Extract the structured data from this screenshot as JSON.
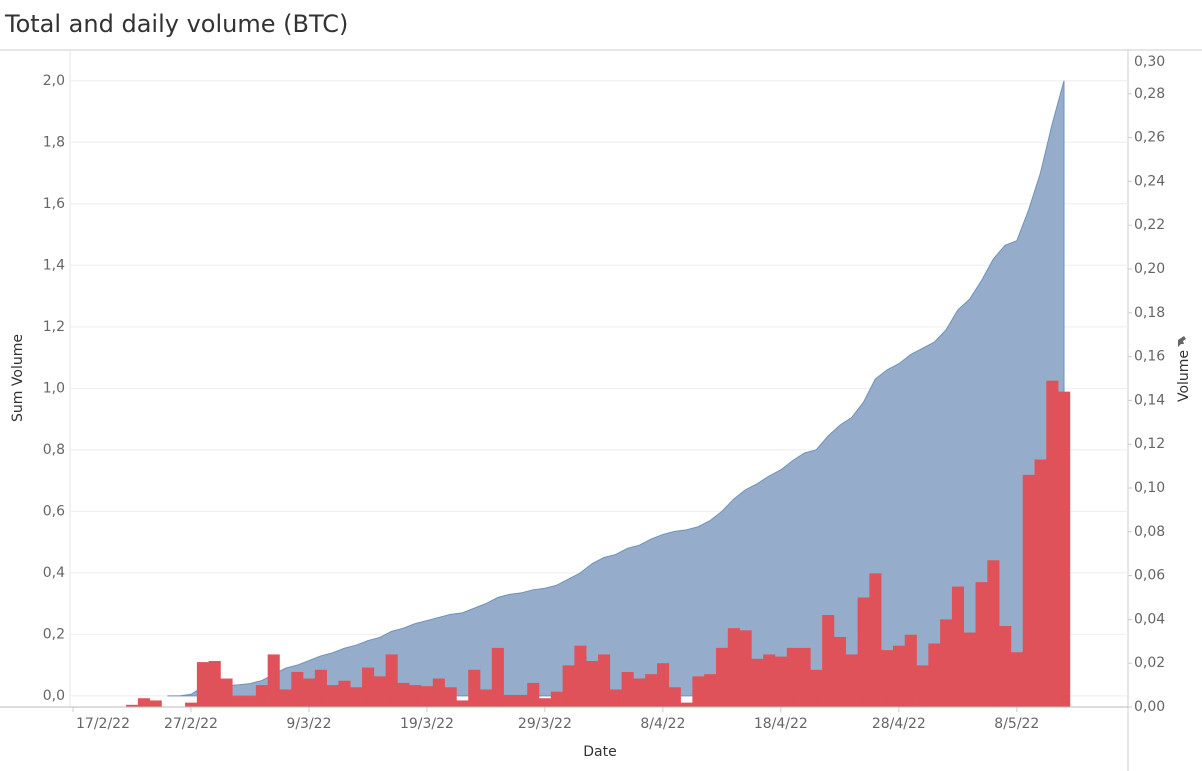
{
  "chart_data": {
    "type": "area-bar",
    "title": "Total and daily volume (BTC)",
    "x_label": "Date",
    "y_label": "Sum Volume",
    "y2_label": "Volume",
    "x": [
      "2022-02-22",
      "2022-02-23",
      "2022-02-24",
      "2022-02-25",
      "2022-02-26",
      "2022-02-27",
      "2022-02-28",
      "2022-03-01",
      "2022-03-02",
      "2022-03-03",
      "2022-03-04",
      "2022-03-05",
      "2022-03-06",
      "2022-03-07",
      "2022-03-08",
      "2022-03-09",
      "2022-03-10",
      "2022-03-11",
      "2022-03-12",
      "2022-03-13",
      "2022-03-14",
      "2022-03-15",
      "2022-03-16",
      "2022-03-17",
      "2022-03-18",
      "2022-03-19",
      "2022-03-20",
      "2022-03-21",
      "2022-03-22",
      "2022-03-23",
      "2022-03-24",
      "2022-03-25",
      "2022-03-26",
      "2022-03-27",
      "2022-03-28",
      "2022-03-29",
      "2022-03-30",
      "2022-03-31",
      "2022-04-01",
      "2022-04-02",
      "2022-04-03",
      "2022-04-04",
      "2022-04-05",
      "2022-04-06",
      "2022-04-07",
      "2022-04-08",
      "2022-04-09",
      "2022-04-10",
      "2022-04-11",
      "2022-04-12",
      "2022-04-13",
      "2022-04-14",
      "2022-04-15",
      "2022-04-16",
      "2022-04-17",
      "2022-04-18",
      "2022-04-19",
      "2022-04-20",
      "2022-04-21",
      "2022-04-22",
      "2022-04-23",
      "2022-04-24",
      "2022-04-25",
      "2022-04-26",
      "2022-04-27",
      "2022-04-28",
      "2022-04-29",
      "2022-04-30",
      "2022-05-01",
      "2022-05-02",
      "2022-05-03",
      "2022-05-04",
      "2022-05-05",
      "2022-05-06",
      "2022-05-07",
      "2022-05-08",
      "2022-05-09",
      "2022-05-10",
      "2022-05-11",
      "2022-05-12"
    ],
    "series": [
      {
        "type": "area",
        "axis": "y",
        "color": "#93acc9",
        "values": [
          null,
          null,
          null,
          0.0,
          0.0,
          0.005,
          0.03,
          0.032,
          0.034,
          0.036,
          0.04,
          0.05,
          0.07,
          0.09,
          0.1,
          0.115,
          0.13,
          0.14,
          0.155,
          0.165,
          0.18,
          0.19,
          0.21,
          0.22,
          0.235,
          0.245,
          0.255,
          0.265,
          0.27,
          0.285,
          0.3,
          0.32,
          0.33,
          0.335,
          0.345,
          0.35,
          0.36,
          0.38,
          0.4,
          0.43,
          0.45,
          0.46,
          0.48,
          0.49,
          0.51,
          0.525,
          0.535,
          0.54,
          0.55,
          0.57,
          0.6,
          0.64,
          0.67,
          0.69,
          0.715,
          0.735,
          0.765,
          0.79,
          0.8,
          0.845,
          0.88,
          0.905,
          0.955,
          1.03,
          1.06,
          1.08,
          1.11,
          1.13,
          1.15,
          1.19,
          1.255,
          1.29,
          1.35,
          1.42,
          1.465,
          1.48,
          1.58,
          1.7,
          1.86,
          2.0
        ]
      },
      {
        "type": "bar",
        "axis": "y2",
        "color": "#e0525a",
        "values": [
          0.001,
          0.004,
          0.003,
          0,
          0,
          0.002,
          0.0205,
          0.021,
          0.013,
          0.005,
          0.005,
          0.01,
          0.024,
          0.008,
          0.016,
          0.013,
          0.017,
          0.01,
          0.012,
          0.009,
          0.018,
          0.014,
          0.024,
          0.011,
          0.01,
          0.0095,
          0.013,
          0.009,
          0.003,
          0.017,
          0.008,
          0.027,
          0.0055,
          0.0055,
          0.011,
          0.004,
          0.007,
          0.019,
          0.028,
          0.021,
          0.024,
          0.008,
          0.016,
          0.013,
          0.015,
          0.02,
          0.009,
          0.002,
          0.014,
          0.015,
          0.027,
          0.036,
          0.035,
          0.022,
          0.024,
          0.023,
          0.027,
          0.027,
          0.017,
          0.042,
          0.032,
          0.024,
          0.05,
          0.061,
          0.026,
          0.028,
          0.033,
          0.019,
          0.029,
          0.04,
          0.055,
          0.034,
          0.057,
          0.067,
          0.037,
          0.025,
          0.106,
          0.113,
          0.149,
          0.144
        ]
      }
    ],
    "xlim": [
      "2022-02-17",
      "2022-05-17"
    ],
    "xticks": [
      {
        "value": "2022-02-17",
        "label": "17/2/22"
      },
      {
        "value": "2022-02-27",
        "label": "27/2/22"
      },
      {
        "value": "2022-03-09",
        "label": "9/3/22"
      },
      {
        "value": "2022-03-19",
        "label": "19/3/22"
      },
      {
        "value": "2022-03-29",
        "label": "29/3/22"
      },
      {
        "value": "2022-04-08",
        "label": "8/4/22"
      },
      {
        "value": "2022-04-18",
        "label": "18/4/22"
      },
      {
        "value": "2022-04-28",
        "label": "28/4/22"
      },
      {
        "value": "2022-05-08",
        "label": "8/5/22"
      }
    ],
    "ylim": [
      -0.036,
      2.1
    ],
    "yticks": [
      {
        "value": 0,
        "label": "0,0"
      },
      {
        "value": 0.2,
        "label": "0,2"
      },
      {
        "value": 0.4,
        "label": "0,4"
      },
      {
        "value": 0.6,
        "label": "0,6"
      },
      {
        "value": 0.8,
        "label": "0,8"
      },
      {
        "value": 1.0,
        "label": "1,0"
      },
      {
        "value": 1.2,
        "label": "1,2"
      },
      {
        "value": 1.4,
        "label": "1,4"
      },
      {
        "value": 1.6,
        "label": "1,6"
      },
      {
        "value": 1.8,
        "label": "1,8"
      },
      {
        "value": 2.0,
        "label": "2,0"
      }
    ],
    "y2lim": [
      0,
      0.3
    ],
    "y2ticks": [
      {
        "value": 0,
        "label": "0,00"
      },
      {
        "value": 0.02,
        "label": "0,02"
      },
      {
        "value": 0.04,
        "label": "0,04"
      },
      {
        "value": 0.06,
        "label": "0,06"
      },
      {
        "value": 0.08,
        "label": "0,08"
      },
      {
        "value": 0.1,
        "label": "0,10"
      },
      {
        "value": 0.12,
        "label": "0,12"
      },
      {
        "value": 0.14,
        "label": "0,14"
      },
      {
        "value": 0.16,
        "label": "0,16"
      },
      {
        "value": 0.18,
        "label": "0,18"
      },
      {
        "value": 0.2,
        "label": "0,20"
      },
      {
        "value": 0.22,
        "label": "0,22"
      },
      {
        "value": 0.24,
        "label": "0,24"
      },
      {
        "value": 0.26,
        "label": "0,26"
      },
      {
        "value": 0.28,
        "label": "0,28"
      },
      {
        "value": 0.3,
        "label": "0,30"
      }
    ],
    "grid": true
  }
}
